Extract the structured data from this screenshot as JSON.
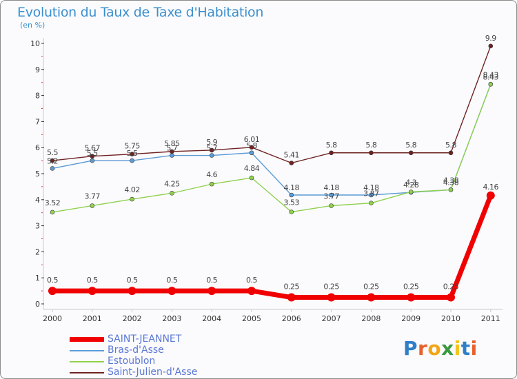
{
  "title": "Evolution du Taux de Taxe d'Habitation",
  "subtitle": "(en %)",
  "logo": {
    "text": "Proxiti",
    "colors": [
      "#2f7fc8",
      "#e8612c",
      "#f2a516",
      "#3a9a3e",
      "#f2c516",
      "#2f7fc8",
      "#e8612c"
    ]
  },
  "chart_data": {
    "type": "line",
    "x": [
      "2000",
      "2001",
      "2002",
      "2003",
      "2004",
      "2005",
      "2006",
      "2007",
      "2008",
      "2009",
      "2010",
      "2011"
    ],
    "ylim": [
      0,
      10
    ],
    "yticks": [
      "0",
      "1",
      "2",
      "3",
      "4",
      "5",
      "6",
      "7",
      "8",
      "9",
      "10"
    ],
    "grid": false,
    "legend_position": "bottom-left",
    "series": [
      {
        "name": "SAINT-JEANNET",
        "color": "#f00000",
        "values": [
          0.5,
          0.5,
          0.5,
          0.5,
          0.5,
          0.5,
          0.25,
          0.25,
          0.25,
          0.25,
          0.25,
          4.16
        ],
        "labels": [
          "0.5",
          "0.5",
          "0.5",
          "0.5",
          "0.5",
          "0.5",
          "0.25",
          "0.25",
          "0.25",
          "0.25",
          "0.25",
          "4.16"
        ]
      },
      {
        "name": "Bras-d'Asse",
        "color": "#5b9bd5",
        "values": [
          5.2,
          5.5,
          5.5,
          5.7,
          5.7,
          5.8,
          4.18,
          4.18,
          4.18,
          4.28,
          4.38,
          8.43
        ],
        "labels": [
          "5.2",
          "5.5",
          "5.5",
          "5.7",
          "5.7",
          "5.8",
          "4.18",
          "4.18",
          "4.18",
          "4.28",
          "4.38",
          "8.43"
        ]
      },
      {
        "name": "Estoublon",
        "color": "#8fd14f",
        "values": [
          3.52,
          3.77,
          4.02,
          4.25,
          4.6,
          4.84,
          3.53,
          3.77,
          3.87,
          4.3,
          4.38,
          8.43
        ],
        "labels": [
          "3.52",
          "3.77",
          "4.02",
          "4.25",
          "4.6",
          "4.84",
          "3.53",
          "3.77",
          "3.87",
          "4.3",
          "4.38",
          "8.43"
        ]
      },
      {
        "name": "Saint-Julien-d'Asse",
        "color": "#6e2222",
        "values": [
          5.5,
          5.67,
          5.75,
          5.85,
          5.9,
          6.01,
          5.41,
          5.8,
          5.8,
          5.8,
          5.8,
          9.9
        ],
        "labels": [
          "5.5",
          "5.67",
          "5.75",
          "5.85",
          "5.9",
          "6.01",
          "5.41",
          "5.8",
          "5.8",
          "5.8",
          "5.8",
          "9.9"
        ]
      }
    ]
  }
}
